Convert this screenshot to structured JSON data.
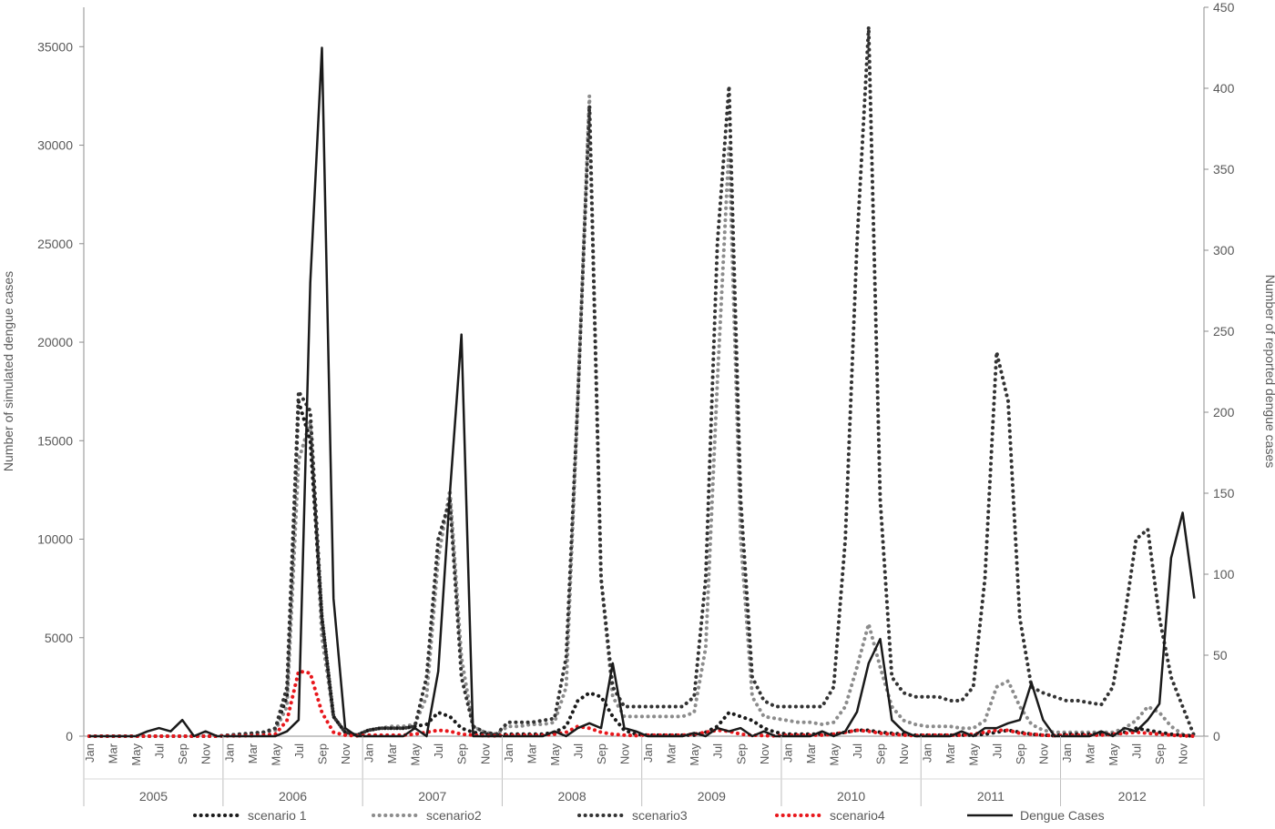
{
  "chart_data": {
    "type": "line",
    "title": "",
    "ylabel": "Number of simulated dengue cases",
    "y2label": "Number of reported dengue cases",
    "ylim": [
      0,
      37000
    ],
    "y_ticks": [
      0,
      5000,
      10000,
      15000,
      20000,
      25000,
      30000,
      35000
    ],
    "y2lim": [
      0,
      450
    ],
    "y2_ticks": [
      0,
      50,
      100,
      150,
      200,
      250,
      300,
      350,
      400,
      450
    ],
    "years": [
      "2005",
      "2006",
      "2007",
      "2008",
      "2009",
      "2010",
      "2011",
      "2012"
    ],
    "month_labels": [
      "Jan",
      "Mar",
      "May",
      "Jul",
      "Sep",
      "Nov"
    ],
    "legend_position": "bottom",
    "series": [
      {
        "name": "scenario 1",
        "axis": "left",
        "style": "dotted",
        "color": "#1a1a1a",
        "values": [
          0,
          0,
          0,
          0,
          0,
          0,
          0,
          0,
          0,
          0,
          0,
          0,
          50,
          100,
          150,
          200,
          400,
          2000,
          17000,
          15000,
          6000,
          1000,
          200,
          50,
          300,
          400,
          400,
          400,
          500,
          600,
          1200,
          1000,
          400,
          200,
          100,
          50,
          100,
          100,
          100,
          100,
          200,
          500,
          1800,
          2200,
          2000,
          1000,
          300,
          100,
          50,
          50,
          50,
          50,
          50,
          200,
          500,
          1200,
          1000,
          800,
          400,
          200,
          100,
          100,
          100,
          100,
          100,
          200,
          300,
          300,
          200,
          150,
          100,
          50,
          50,
          50,
          50,
          50,
          50,
          100,
          200,
          300,
          200,
          100,
          50,
          30,
          100,
          100,
          100,
          100,
          100,
          200,
          400,
          300,
          200,
          100,
          50,
          0
        ]
      },
      {
        "name": "scenario2",
        "axis": "left",
        "style": "dotted",
        "color": "#8c8c8c",
        "values": [
          0,
          0,
          0,
          0,
          0,
          0,
          0,
          0,
          0,
          0,
          0,
          0,
          50,
          100,
          150,
          200,
          300,
          1500,
          14000,
          16000,
          5000,
          1000,
          200,
          50,
          300,
          400,
          500,
          500,
          600,
          2000,
          9000,
          12500,
          4000,
          500,
          200,
          100,
          500,
          500,
          600,
          600,
          700,
          2500,
          17000,
          32500,
          8000,
          2000,
          1000,
          1000,
          1000,
          1000,
          1000,
          1000,
          1200,
          4500,
          18000,
          30000,
          10000,
          2000,
          1000,
          900,
          800,
          700,
          700,
          600,
          700,
          1500,
          3500,
          5700,
          3500,
          1500,
          800,
          600,
          500,
          500,
          500,
          400,
          400,
          800,
          2500,
          2800,
          1500,
          600,
          300,
          200,
          200,
          200,
          200,
          200,
          200,
          400,
          800,
          1500,
          1200,
          500,
          100,
          0
        ]
      },
      {
        "name": "scenario3",
        "axis": "left",
        "style": "dotted",
        "color": "#333333",
        "values": [
          0,
          0,
          0,
          0,
          0,
          0,
          0,
          0,
          0,
          0,
          0,
          0,
          50,
          100,
          150,
          200,
          400,
          2500,
          17500,
          16500,
          6000,
          1000,
          200,
          50,
          300,
          400,
          400,
          400,
          500,
          3000,
          10000,
          12000,
          3000,
          500,
          200,
          100,
          700,
          700,
          700,
          800,
          900,
          4000,
          17000,
          32000,
          8000,
          2500,
          1500,
          1500,
          1500,
          1500,
          1500,
          1500,
          2000,
          8000,
          25000,
          33000,
          12000,
          3000,
          1800,
          1500,
          1500,
          1500,
          1500,
          1500,
          2500,
          10000,
          25000,
          36000,
          12000,
          3000,
          2200,
          2000,
          2000,
          2000,
          1800,
          1800,
          2500,
          8000,
          19500,
          17000,
          6000,
          2500,
          2200,
          2000,
          1800,
          1800,
          1700,
          1600,
          2500,
          6000,
          10000,
          10500,
          6000,
          3000,
          1500,
          0
        ]
      },
      {
        "name": "scenario4",
        "axis": "left",
        "style": "dotted",
        "color": "#e8171c",
        "values": [
          0,
          0,
          0,
          0,
          0,
          0,
          0,
          0,
          0,
          0,
          0,
          0,
          20,
          20,
          30,
          50,
          100,
          800,
          3300,
          3200,
          1200,
          200,
          50,
          20,
          50,
          50,
          50,
          50,
          100,
          200,
          300,
          250,
          100,
          50,
          30,
          20,
          50,
          50,
          50,
          50,
          100,
          200,
          500,
          400,
          200,
          100,
          50,
          30,
          50,
          50,
          50,
          50,
          100,
          200,
          300,
          250,
          100,
          50,
          30,
          20,
          50,
          50,
          50,
          50,
          100,
          200,
          300,
          250,
          150,
          100,
          50,
          30,
          50,
          50,
          50,
          50,
          100,
          200,
          300,
          300,
          150,
          100,
          50,
          30,
          50,
          50,
          50,
          50,
          100,
          150,
          200,
          150,
          100,
          50,
          20,
          0
        ]
      },
      {
        "name": "Dengue Cases",
        "axis": "right",
        "style": "solid",
        "color": "#1a1a1a",
        "values": [
          0,
          0,
          0,
          0,
          0,
          3,
          5,
          3,
          10,
          0,
          3,
          0,
          0,
          0,
          0,
          0,
          0,
          3,
          10,
          280,
          425,
          85,
          5,
          0,
          0,
          0,
          0,
          0,
          5,
          0,
          40,
          150,
          248,
          0,
          0,
          0,
          0,
          0,
          0,
          0,
          3,
          0,
          5,
          8,
          5,
          45,
          5,
          3,
          0,
          0,
          0,
          0,
          2,
          0,
          5,
          3,
          5,
          0,
          3,
          0,
          0,
          0,
          0,
          3,
          0,
          3,
          15,
          45,
          60,
          10,
          3,
          0,
          0,
          0,
          0,
          3,
          0,
          5,
          5,
          8,
          10,
          33,
          10,
          0,
          0,
          0,
          0,
          3,
          0,
          5,
          3,
          10,
          20,
          110,
          138,
          85
        ]
      }
    ]
  }
}
